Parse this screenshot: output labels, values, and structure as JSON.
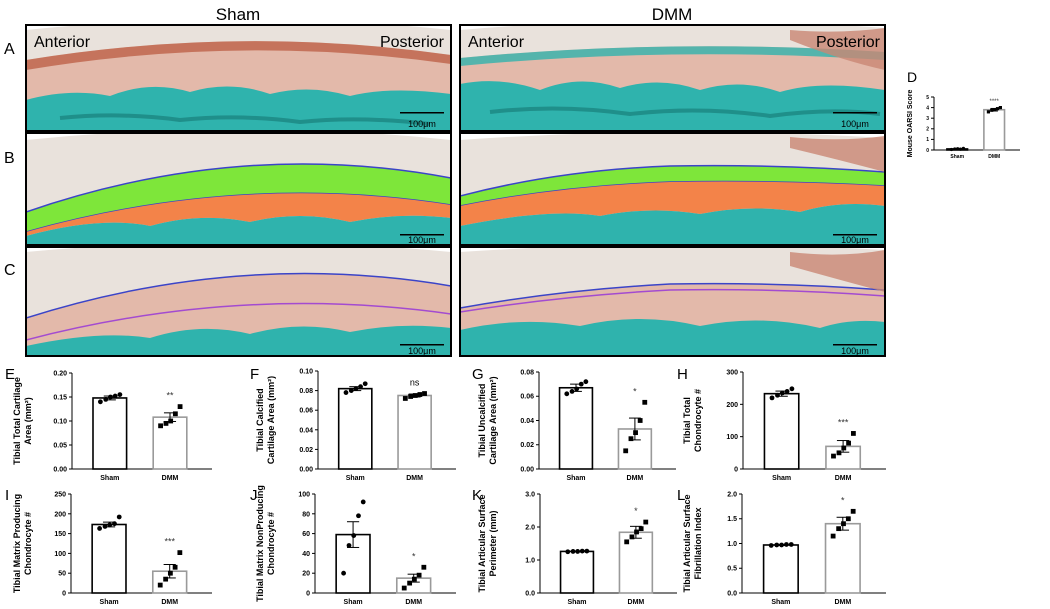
{
  "column_titles": {
    "left": "Sham",
    "right": "DMM"
  },
  "row_letters": [
    "A",
    "B",
    "C"
  ],
  "micrograph_labels": {
    "sham_anterior": "Anterior",
    "sham_posterior": "Posterior",
    "dmm_anterior": "Anterior",
    "dmm_posterior": "Posterior"
  },
  "scale_bar": "100μm",
  "colors": {
    "stain_teal": "#2fb3ad",
    "cartilage_pink": "#e3b9aa",
    "uncalcified_green": "#7ee63a",
    "calcified_orange": "#f38349",
    "surface_line_blue": "#3b44c8",
    "tidemark_purple": "#a34bd0",
    "sham_bar_edge": "#000000",
    "dmm_bar_edge": "#9a9a9a"
  },
  "chart_data": [
    {
      "panel": "D",
      "type": "bar",
      "categories": [
        "Sham",
        "DMM"
      ],
      "ylabel": "Mouse OARSI Score",
      "ylim": [
        0,
        5
      ],
      "yticks": [
        "0",
        "1",
        "2",
        "3",
        "4",
        "5"
      ],
      "values": [
        0.1,
        3.8
      ],
      "sem": [
        0.05,
        0.12
      ],
      "points": [
        [
          0.05,
          0.1,
          0.12,
          0.08,
          0.15
        ],
        [
          3.6,
          3.75,
          3.8,
          3.9,
          4.0
        ]
      ],
      "sig": "****",
      "ylabel2": ""
    },
    {
      "panel": "E",
      "type": "bar",
      "categories": [
        "Sham",
        "DMM"
      ],
      "ylabel": "Tibial Total Cartilage",
      "ylabel2": "Area (mm²)",
      "ylim": [
        0,
        0.2
      ],
      "yticks": [
        "0.00",
        "0.05",
        "0.10",
        "0.15",
        "0.20"
      ],
      "values": [
        0.148,
        0.108
      ],
      "sem": [
        0.004,
        0.009
      ],
      "points": [
        [
          0.14,
          0.145,
          0.15,
          0.152,
          0.155
        ],
        [
          0.09,
          0.095,
          0.1,
          0.115,
          0.13
        ]
      ],
      "sig": "**"
    },
    {
      "panel": "F",
      "type": "bar",
      "categories": [
        "Sham",
        "DMM"
      ],
      "ylabel": "Tibial  Calcified",
      "ylabel2": "Cartilage Area (mm²)",
      "ylim": [
        0,
        0.1
      ],
      "yticks": [
        "0.00",
        "0.02",
        "0.04",
        "0.06",
        "0.08",
        "0.10"
      ],
      "values": [
        0.082,
        0.075
      ],
      "sem": [
        0.002,
        0.0015
      ],
      "points": [
        [
          0.078,
          0.08,
          0.082,
          0.084,
          0.087
        ],
        [
          0.072,
          0.074,
          0.075,
          0.076,
          0.077
        ]
      ],
      "sig": "ns"
    },
    {
      "panel": "G",
      "type": "bar",
      "categories": [
        "Sham",
        "DMM"
      ],
      "ylabel": "Tibial Uncalcified",
      "ylabel2": "Cartilage Area (mm²)",
      "ylim": [
        0,
        0.08
      ],
      "yticks": [
        "0.00",
        "0.02",
        "0.04",
        "0.06",
        "0.08"
      ],
      "values": [
        0.067,
        0.033
      ],
      "sem": [
        0.003,
        0.009
      ],
      "points": [
        [
          0.062,
          0.064,
          0.066,
          0.07,
          0.072
        ],
        [
          0.015,
          0.025,
          0.03,
          0.04,
          0.055
        ]
      ],
      "sig": "*"
    },
    {
      "panel": "H",
      "type": "bar",
      "categories": [
        "Sham",
        "DMM"
      ],
      "ylabel": "Tibial Total",
      "ylabel2": "Chondrocyte #",
      "ylim": [
        0,
        300
      ],
      "yticks": [
        "0",
        "100",
        "200",
        "300"
      ],
      "values": [
        233,
        70
      ],
      "sem": [
        8,
        18
      ],
      "points": [
        [
          220,
          228,
          235,
          240,
          248
        ],
        [
          40,
          50,
          65,
          80,
          110
        ]
      ],
      "sig": "***"
    },
    {
      "panel": "I",
      "type": "bar",
      "categories": [
        "Sham",
        "DMM"
      ],
      "ylabel": "Tibial Matrix Producing",
      "ylabel2": "Chondrocyte #",
      "ylim": [
        0,
        250
      ],
      "yticks": [
        "0",
        "50",
        "100",
        "150",
        "200",
        "250"
      ],
      "values": [
        173,
        55
      ],
      "sem": [
        6,
        17
      ],
      "points": [
        [
          163,
          168,
          172,
          175,
          192
        ],
        [
          20,
          35,
          50,
          65,
          102
        ]
      ],
      "sig": "***"
    },
    {
      "panel": "J",
      "type": "bar",
      "categories": [
        "Sham",
        "DMM"
      ],
      "ylabel": "Tibial Matrix NonProducing",
      "ylabel2": "Chondrocyte #",
      "ylim": [
        0,
        100
      ],
      "yticks": [
        "0",
        "20",
        "40",
        "60",
        "80",
        "100"
      ],
      "values": [
        59,
        15
      ],
      "sem": [
        13,
        4
      ],
      "points": [
        [
          20,
          48,
          58,
          78,
          92
        ],
        [
          5,
          10,
          14,
          18,
          26
        ]
      ],
      "sig": "*"
    },
    {
      "panel": "K",
      "type": "bar",
      "categories": [
        "Sham",
        "DMM"
      ],
      "ylabel": "Tibial  Articular Surface",
      "ylabel2": "Perimeter (mm)",
      "ylim": [
        0,
        3.0
      ],
      "yticks": [
        "0.0",
        "1.0",
        "2.0",
        "3.0"
      ],
      "values": [
        1.26,
        1.84
      ],
      "sem": [
        0.01,
        0.18
      ],
      "points": [
        [
          1.25,
          1.26,
          1.26,
          1.27,
          1.27
        ],
        [
          1.55,
          1.7,
          1.85,
          1.95,
          2.15
        ]
      ],
      "sig": "*"
    },
    {
      "panel": "L",
      "type": "bar",
      "categories": [
        "Sham",
        "DMM"
      ],
      "ylabel": "Tibial  Articular Surface",
      "ylabel2": "Fibrillation Index",
      "ylim": [
        0,
        2.0
      ],
      "yticks": [
        "0.0",
        "0.5",
        "1.0",
        "1.5",
        "2.0"
      ],
      "values": [
        0.97,
        1.4
      ],
      "sem": [
        0.01,
        0.13
      ],
      "points": [
        [
          0.96,
          0.97,
          0.97,
          0.98,
          0.98
        ],
        [
          1.15,
          1.3,
          1.4,
          1.5,
          1.65
        ]
      ],
      "sig": "*"
    }
  ]
}
